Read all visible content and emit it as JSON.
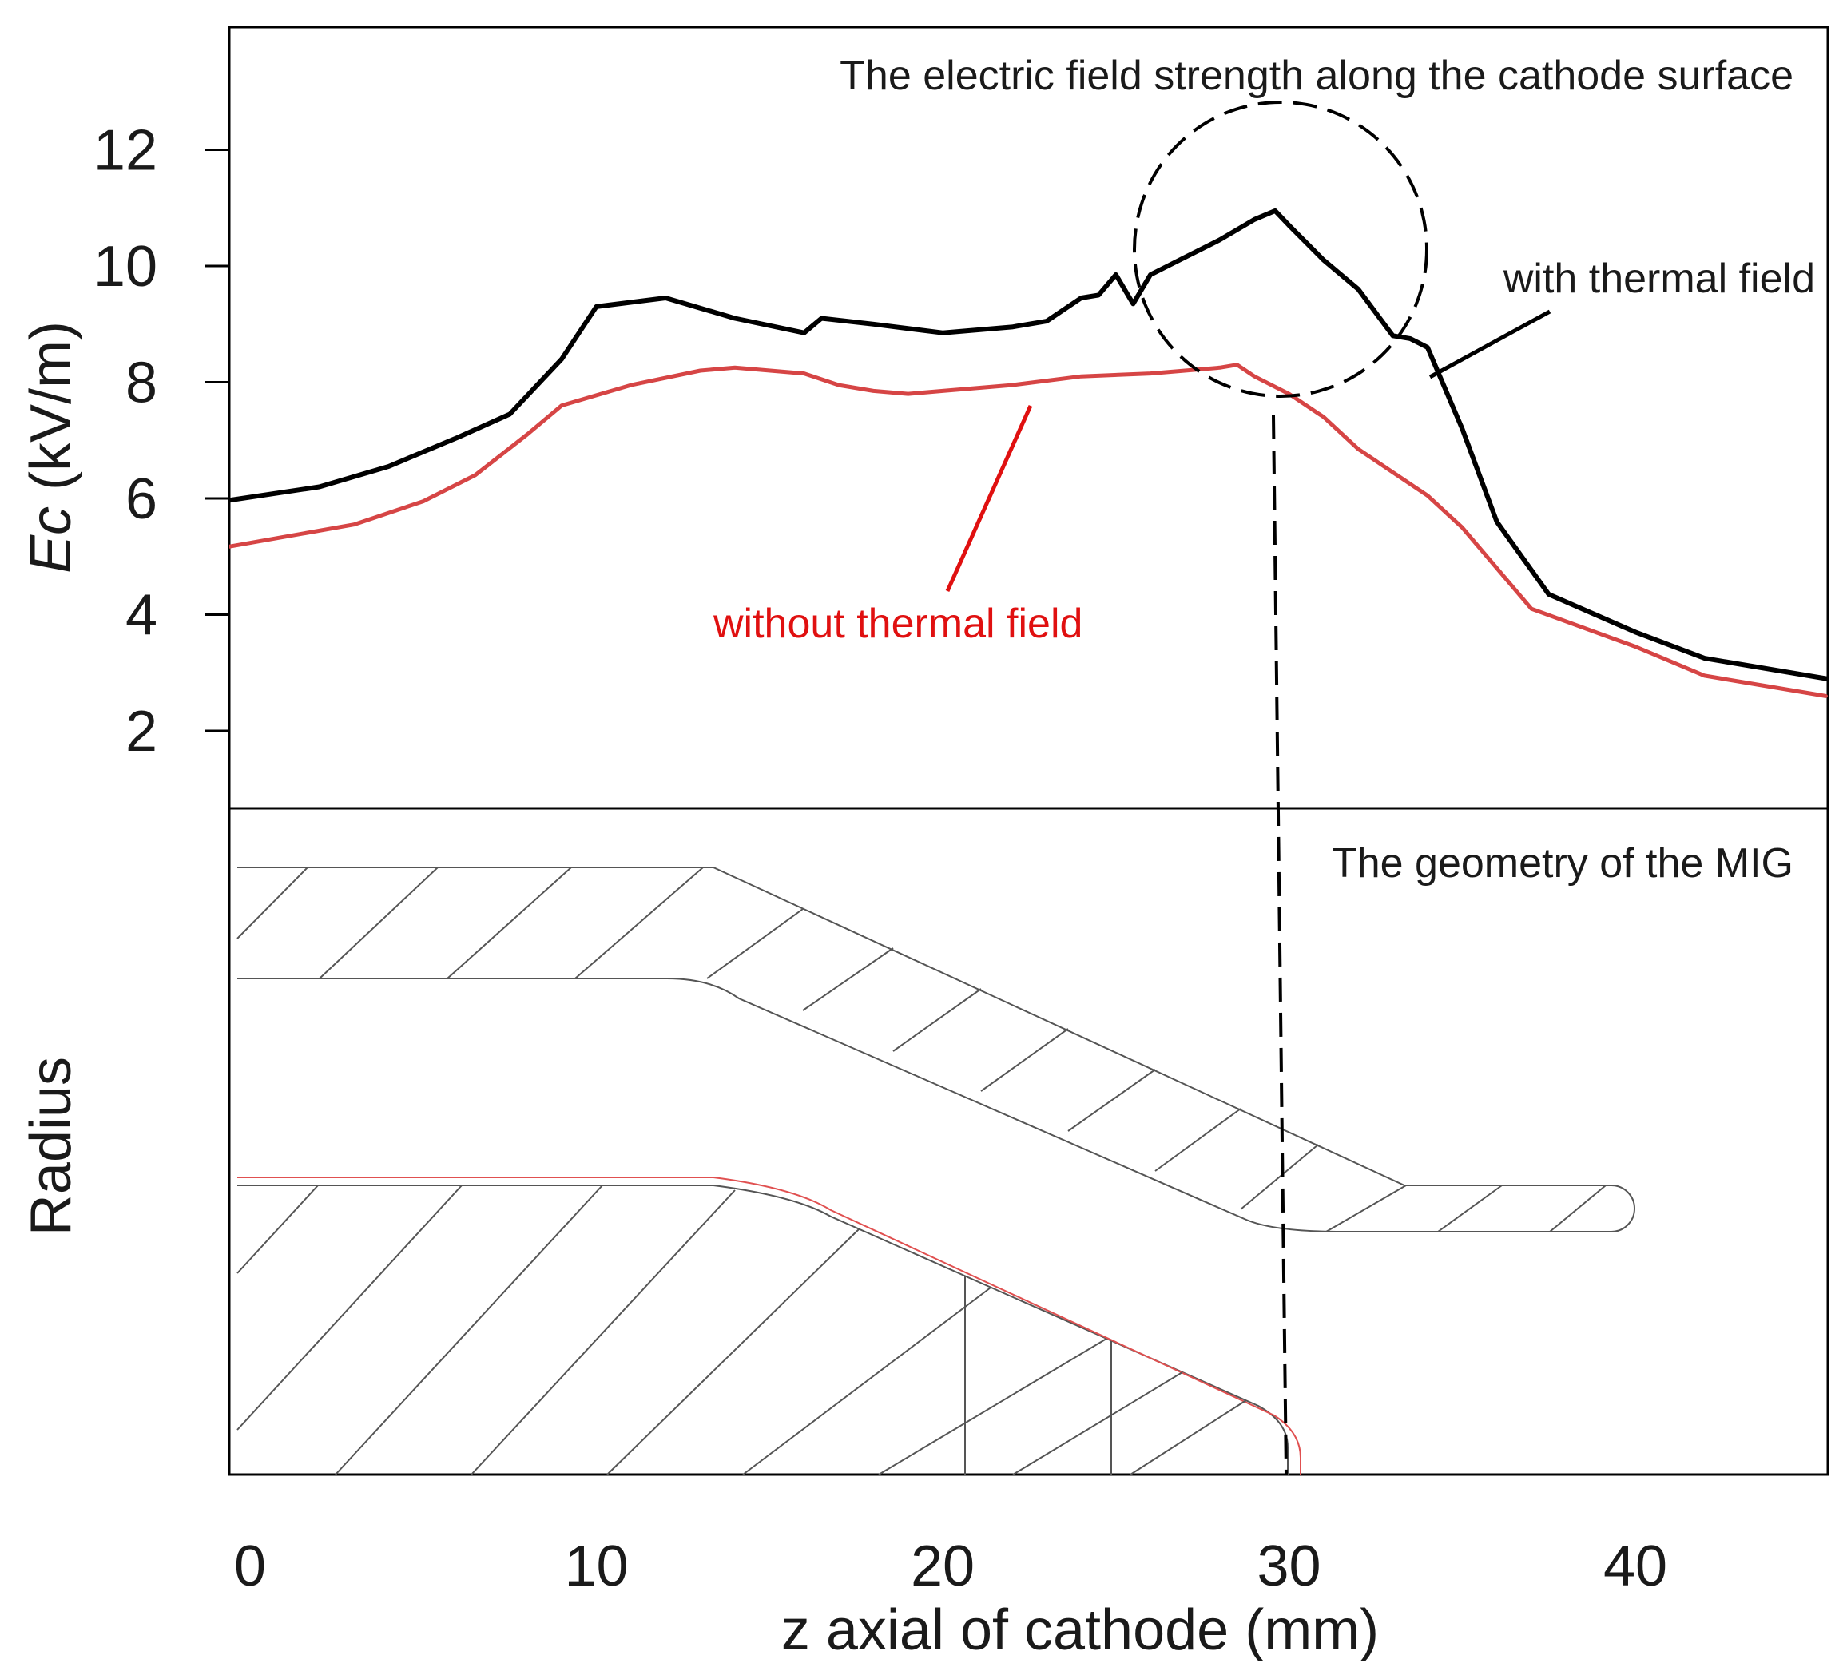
{
  "chart_data": [
    {
      "type": "line",
      "title": "The electric field strength along the cathode surface",
      "ylabel_italic": "Ec",
      "ylabel_unit": " (kV/m)",
      "xlim": [
        -0.8,
        45.5
      ],
      "ylim": [
        0.8,
        14.4
      ],
      "yticks": [
        2,
        4,
        6,
        8,
        10,
        12
      ],
      "series": [
        {
          "name": "with thermal field",
          "color": "#000000",
          "x": [
            -0.8,
            2,
            4,
            6,
            7.5,
            9,
            10,
            12,
            14,
            16,
            16.5,
            18,
            20,
            22,
            23,
            24,
            24.5,
            25,
            25.5,
            26,
            26.5,
            27,
            28,
            29,
            29.6,
            30,
            31,
            32,
            33,
            33.5,
            34,
            35,
            36,
            37.5,
            40,
            42,
            45.5
          ],
          "y": [
            5.95,
            6.2,
            6.55,
            7.05,
            7.45,
            8.4,
            9.3,
            9.45,
            9.1,
            8.85,
            9.1,
            9.0,
            8.85,
            8.95,
            9.05,
            9.45,
            9.5,
            9.85,
            9.35,
            9.85,
            10.0,
            10.15,
            10.45,
            10.8,
            10.95,
            10.7,
            10.1,
            9.6,
            8.8,
            8.75,
            8.6,
            7.2,
            5.6,
            4.35,
            3.7,
            3.25,
            2.9
          ]
        },
        {
          "name": "without thermal field",
          "color": "#d64545",
          "x": [
            -0.8,
            3,
            5,
            6.5,
            8,
            9,
            11,
            13,
            14,
            16,
            17,
            18,
            19,
            20,
            22,
            24,
            26,
            28,
            28.5,
            29,
            30,
            31,
            32,
            33,
            34,
            35,
            36,
            37,
            40,
            42,
            45.5
          ],
          "y": [
            5.15,
            5.55,
            5.95,
            6.4,
            7.1,
            7.6,
            7.95,
            8.2,
            8.25,
            8.15,
            7.95,
            7.85,
            7.8,
            7.85,
            7.95,
            8.1,
            8.15,
            8.25,
            8.3,
            8.1,
            7.8,
            7.4,
            6.85,
            6.45,
            6.05,
            5.5,
            4.8,
            4.1,
            3.45,
            2.95,
            2.6
          ]
        }
      ],
      "annotations": {
        "with_label": "with thermal field",
        "without_label": "without thermal field"
      }
    },
    {
      "type": "diagram",
      "title": "The geometry of the MIG",
      "ylabel": "Radius",
      "xlabel": "z axial of cathode (mm)",
      "xticks": [
        0,
        10,
        20,
        30,
        40
      ]
    }
  ]
}
